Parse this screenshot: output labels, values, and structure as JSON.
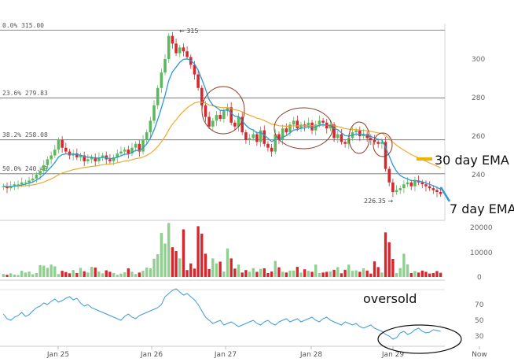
{
  "chart_data": [
    {
      "type": "candlestick",
      "panel": "price",
      "ylim": [
        220,
        320
      ],
      "y_ticks": [
        240,
        260,
        280,
        300
      ],
      "x_tick_labels": [
        "Jan 25",
        "Jan 26",
        "Jan 27",
        "Jan 28",
        "Jan 29",
        "Now"
      ],
      "fib_levels": [
        {
          "label": "0.0% 315.00",
          "value": 315.0
        },
        {
          "label": "23.6% 279.83",
          "value": 279.83
        },
        {
          "label": "38.2% 258.08",
          "value": 258.08
        },
        {
          "label": "50.0% 240.49",
          "value": 240.49
        }
      ],
      "high_label": "315",
      "low_label": "226.35",
      "annotations": [
        "30 day EMA",
        "7 day EMA"
      ],
      "colors": {
        "up": "#5cb85c",
        "down": "#d9262d",
        "ema_fast": "#2b9ad6",
        "ema_slow": "#f0a830",
        "circle": "#8b3a2a"
      },
      "close": [
        234,
        233,
        234,
        235,
        235,
        236,
        236,
        237,
        238,
        240,
        242,
        245,
        248,
        250,
        253,
        258,
        254,
        252,
        250,
        251,
        249,
        250,
        247,
        248,
        249,
        247,
        249,
        250,
        248,
        247,
        249,
        251,
        252,
        253,
        251,
        254,
        256,
        252,
        258,
        262,
        268,
        276,
        285,
        293,
        300,
        312,
        308,
        303,
        306,
        304,
        301,
        297,
        292,
        285,
        276,
        270,
        265,
        268,
        271,
        269,
        273,
        275,
        267,
        265,
        270,
        262,
        258,
        259,
        261,
        257,
        263,
        256,
        254,
        252,
        261,
        258,
        264,
        262,
        266,
        268,
        264,
        266,
        265,
        267,
        263,
        266,
        268,
        267,
        264,
        266,
        259,
        261,
        257,
        256,
        259,
        262,
        263,
        260,
        261,
        259,
        258,
        257,
        256,
        257,
        243,
        236,
        231,
        232,
        233,
        235,
        236,
        234,
        237,
        236,
        235,
        234,
        233,
        232,
        231,
        230
      ],
      "ema_fast": [
        234,
        233.8,
        233.8,
        234.1,
        234.3,
        234.7,
        235.1,
        235.6,
        236.2,
        237.2,
        238.4,
        240.1,
        242.1,
        244.1,
        246.3,
        249.2,
        250.4,
        250.8,
        250.6,
        250.7,
        250.3,
        250.2,
        249.4,
        249.1,
        249.1,
        248.5,
        248.6,
        249,
        248.8,
        248.3,
        248.5,
        249.1,
        249.8,
        250.6,
        250.7,
        251.5,
        252.6,
        252.5,
        253.9,
        255.9,
        258.9,
        263.2,
        268.6,
        274.7,
        281.1,
        288.8,
        293.4,
        295.8,
        298.3,
        299.8,
        300.1,
        299.3,
        297.5,
        294.3,
        289.5,
        284.4,
        278.9,
        276.1,
        274.9,
        273.4,
        273.3,
        273.7,
        272,
        270.3,
        270.2,
        268.1,
        265.6,
        263.9,
        263.2,
        261.6,
        262,
        260.5,
        258.9,
        257.2,
        258.2,
        258.2,
        259.6,
        260.2,
        261.7,
        263.2,
        263.4,
        264.1,
        264.3,
        264.9,
        264.4,
        264.8,
        265.6,
        266,
        265.5,
        265.6,
        264,
        263.3,
        261.7,
        260.3,
        260,
        260.5,
        261.1,
        260.8,
        260.9,
        260.4,
        259.8,
        259.1,
        258.3,
        258,
        254.3,
        249.7,
        245,
        241.8,
        239.6,
        238.5,
        237.8,
        236.9,
        237,
        236.7,
        236.3,
        235.7,
        235,
        234.3,
        233.4,
        232.5
      ],
      "ema_slow": [
        234,
        233.9,
        233.9,
        234,
        234.1,
        234.2,
        234.3,
        234.5,
        234.7,
        235.1,
        235.6,
        236.2,
        237,
        237.8,
        238.8,
        240,
        240.8,
        241.5,
        242,
        242.6,
        243,
        243.4,
        243.7,
        244,
        244.3,
        244.5,
        244.8,
        245.2,
        245.4,
        245.5,
        245.8,
        246.2,
        246.6,
        247,
        247.3,
        247.8,
        248.3,
        248.6,
        249.2,
        250,
        251.1,
        252.7,
        254.6,
        257.1,
        259.8,
        263.3,
        266.2,
        268.5,
        270.9,
        272.9,
        274.7,
        276.1,
        277.2,
        277.7,
        277.6,
        277.1,
        276.2,
        275.7,
        275.4,
        274.9,
        274.8,
        274.8,
        274.2,
        273.6,
        273.4,
        272.6,
        271.6,
        270.8,
        270.2,
        269.3,
        268.9,
        268.1,
        267.2,
        266.2,
        265.9,
        265.4,
        265.3,
        265.1,
        265.2,
        265.4,
        265.3,
        265.4,
        265.4,
        265.5,
        265.4,
        265.4,
        265.6,
        265.7,
        265.6,
        265.7,
        265.3,
        265,
        264.5,
        263.9,
        263.6,
        263.5,
        263.4,
        263.2,
        263,
        262.8,
        262.5,
        262.1,
        261.7,
        261.5,
        260.3,
        258.7,
        256.9,
        255.3,
        253.9,
        252.7,
        251.6,
        250.4,
        249.6,
        248.7,
        247.8,
        247,
        246.1,
        245.3,
        244.4,
        243.6
      ]
    },
    {
      "type": "bar",
      "panel": "volume",
      "ylim": [
        0,
        24000
      ],
      "y_ticks": [
        0,
        10000,
        20000
      ],
      "values": [
        1200,
        900,
        1500,
        1000,
        800,
        2500,
        1800,
        2200,
        1100,
        1600,
        4800,
        4600,
        3700,
        5000,
        4300,
        1200,
        2500,
        2000,
        1500,
        2800,
        1600,
        3700,
        2300,
        1800,
        4100,
        3800,
        2200,
        1500,
        2700,
        2100,
        1600,
        900,
        1400,
        1900,
        3500,
        2100,
        1200,
        1800,
        2500,
        3800,
        3500,
        7400,
        9200,
        17800,
        13500,
        21800,
        12000,
        10500,
        7500,
        19200,
        2800,
        5500,
        3400,
        20500,
        17500,
        9400,
        3200,
        7500,
        5500,
        6200,
        2200,
        11500,
        7500,
        3400,
        5000,
        1800,
        2800,
        2100,
        3600,
        2100,
        3300,
        3500,
        1600,
        2200,
        6500,
        3900,
        2100,
        1800,
        2600,
        2600,
        4100,
        1800,
        3100,
        2500,
        2100,
        5000,
        1600,
        1800,
        2100,
        2300,
        2900,
        4000,
        1500,
        2900,
        5000,
        2500,
        2700,
        2100,
        3500,
        2600,
        1400,
        6300,
        4000,
        1800,
        18000,
        14000,
        7300,
        1600,
        3600,
        9400,
        5100,
        1600,
        2400,
        1800,
        2600,
        2100,
        1400,
        1600,
        2400,
        1700
      ]
    },
    {
      "type": "line",
      "panel": "rsi",
      "ylim": [
        22,
        96
      ],
      "y_ticks": [
        30,
        50,
        70
      ],
      "annotation": "oversold",
      "values": [
        58,
        52,
        50,
        54,
        56,
        60,
        55,
        57,
        62,
        66,
        68,
        72,
        70,
        74,
        77,
        73,
        75,
        78,
        80,
        76,
        78,
        72,
        68,
        70,
        66,
        64,
        62,
        60,
        58,
        56,
        54,
        52,
        50,
        55,
        58,
        54,
        52,
        56,
        58,
        60,
        62,
        64,
        66,
        70,
        80,
        84,
        88,
        90,
        86,
        82,
        84,
        80,
        76,
        70,
        62,
        54,
        50,
        46,
        48,
        50,
        44,
        46,
        48,
        45,
        42,
        44,
        46,
        48,
        50,
        46,
        44,
        48,
        50,
        46,
        44,
        48,
        50,
        52,
        48,
        50,
        52,
        48,
        50,
        52,
        54,
        50,
        48,
        52,
        54,
        50,
        48,
        46,
        44,
        48,
        46,
        44,
        46,
        42,
        40,
        42,
        44,
        40,
        38,
        36,
        32,
        30,
        26,
        28,
        34,
        36,
        32,
        34,
        38,
        40,
        36,
        34,
        35,
        38,
        37,
        36
      ]
    }
  ]
}
